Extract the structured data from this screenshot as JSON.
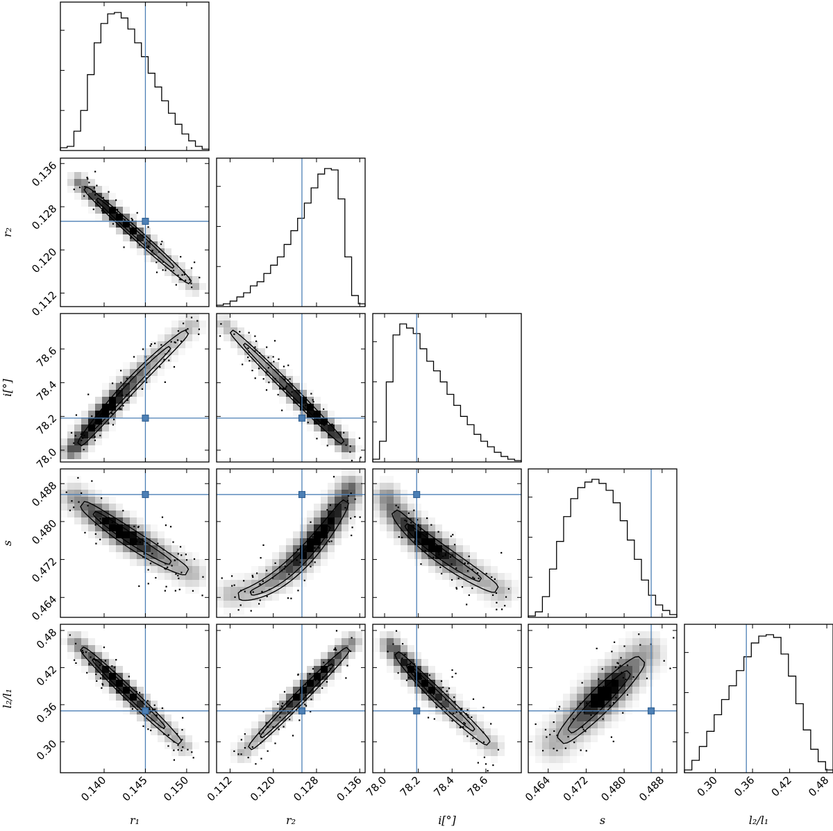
{
  "chart_data": {
    "type": "corner",
    "parameters": [
      {
        "id": "r1",
        "label": "r₁",
        "range": [
          0.1347,
          0.1527
        ],
        "ticks": [
          0.14,
          0.145,
          0.15
        ],
        "tick_labels": [
          "0.140",
          "0.145",
          "0.150"
        ],
        "truth": 0.145
      },
      {
        "id": "r2",
        "label": "r₂",
        "range": [
          0.1095,
          0.137
        ],
        "ticks": [
          0.112,
          0.12,
          0.128,
          0.136
        ],
        "tick_labels": [
          "0.112",
          "0.120",
          "0.128",
          "0.136"
        ],
        "truth": 0.1253
      },
      {
        "id": "i",
        "label": "i[°]",
        "range": [
          77.93,
          78.81
        ],
        "ticks": [
          78.0,
          78.2,
          78.4,
          78.6
        ],
        "tick_labels": [
          "78.0",
          "78.2",
          "78.4",
          "78.6"
        ],
        "truth": 78.19
      },
      {
        "id": "s",
        "label": "s",
        "range": [
          0.4598,
          0.4911
        ],
        "ticks": [
          0.464,
          0.472,
          0.48,
          0.488
        ],
        "tick_labels": [
          "0.464",
          "0.472",
          "0.480",
          "0.488"
        ],
        "truth": 0.4857
      },
      {
        "id": "l21",
        "label": "l₂/l₁",
        "range": [
          0.25,
          0.49
        ],
        "ticks": [
          0.3,
          0.36,
          0.42,
          0.48
        ],
        "tick_labels": [
          "0.30",
          "0.36",
          "0.42",
          "0.48"
        ],
        "truth": 0.35
      }
    ],
    "histograms": [
      [
        0.02,
        0.03,
        0.14,
        0.29,
        0.55,
        0.78,
        0.92,
        0.99,
        1.0,
        0.96,
        0.88,
        0.78,
        0.68,
        0.56,
        0.46,
        0.36,
        0.27,
        0.19,
        0.12,
        0.07,
        0.03,
        0.01
      ],
      [
        0.01,
        0.02,
        0.04,
        0.07,
        0.1,
        0.15,
        0.18,
        0.24,
        0.3,
        0.36,
        0.45,
        0.55,
        0.64,
        0.75,
        0.86,
        0.96,
        1.0,
        0.99,
        0.78,
        0.36,
        0.08,
        0.02
      ],
      [
        0.02,
        0.15,
        0.58,
        0.92,
        1.0,
        0.97,
        0.93,
        0.82,
        0.73,
        0.66,
        0.58,
        0.49,
        0.41,
        0.33,
        0.27,
        0.2,
        0.15,
        0.11,
        0.07,
        0.04,
        0.02,
        0.01
      ],
      [
        0.01,
        0.04,
        0.15,
        0.35,
        0.55,
        0.73,
        0.86,
        0.94,
        0.98,
        1.0,
        0.97,
        0.92,
        0.83,
        0.7,
        0.56,
        0.42,
        0.27,
        0.16,
        0.09,
        0.05,
        0.02
      ],
      [
        0.02,
        0.09,
        0.19,
        0.3,
        0.42,
        0.53,
        0.63,
        0.74,
        0.84,
        0.94,
        0.99,
        1.0,
        0.98,
        0.86,
        0.7,
        0.5,
        0.31,
        0.17,
        0.08,
        0.02
      ]
    ],
    "colors": {
      "truth": "#4c7fb5",
      "contour": "#000000",
      "hist": "#000000",
      "density": "#000000"
    }
  }
}
